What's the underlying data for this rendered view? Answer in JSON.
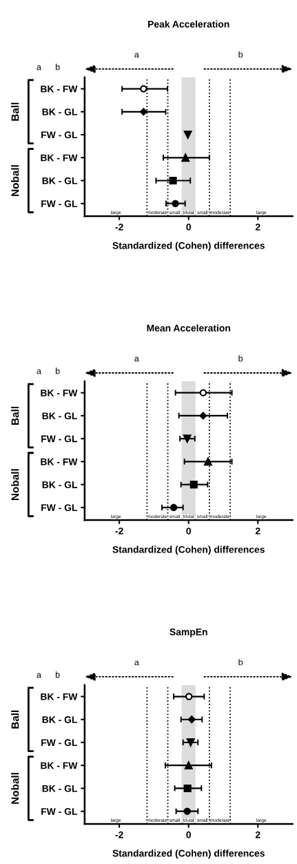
{
  "chart_data": [
    {
      "type": "scatter",
      "title": "Peak Acceleration",
      "xlabel": "Standardized (Cohen) differences",
      "orientation": "horizontal",
      "categories": [
        "BK - FW",
        "BK - GL",
        "FW - GL",
        "BK - FW",
        "BK - GL",
        "FW - GL"
      ],
      "xlim": [
        -3,
        3
      ],
      "xticks": [
        -2,
        0,
        2
      ],
      "grid": false,
      "legend": false,
      "series": [
        {
          "color": "#000000",
          "marker": "circle_open",
          "values": [
            -1.3,
            null,
            null,
            null,
            null,
            null
          ],
          "errors": [
            [
              -1.92,
              -0.61
            ],
            null,
            null,
            null,
            null,
            null
          ]
        },
        {
          "color": "#000000",
          "marker": "diamond",
          "values": [
            null,
            -1.3,
            null,
            null,
            null,
            null
          ],
          "errors": [
            null,
            [
              -1.92,
              -0.66
            ],
            null,
            null,
            null,
            null
          ]
        },
        {
          "color": "#000000",
          "marker": "triangle_down",
          "values": [
            null,
            null,
            -0.02,
            null,
            null,
            null
          ]
        },
        {
          "color": "#000000",
          "marker": "triangle",
          "values": [
            null,
            null,
            null,
            -0.09,
            null,
            null
          ],
          "errors": [
            null,
            null,
            null,
            [
              -0.73,
              0.6
            ],
            null,
            null
          ]
        },
        {
          "color": "#000000",
          "marker": "square",
          "values": [
            null,
            null,
            null,
            null,
            -0.45,
            null
          ],
          "errors": [
            null,
            null,
            null,
            null,
            [
              -0.94,
              0.05
            ],
            null
          ]
        },
        {
          "color": "#000000",
          "marker": "circle",
          "values": [
            null,
            null,
            null,
            null,
            null,
            -0.38
          ],
          "errors": [
            null,
            null,
            null,
            null,
            null,
            [
              -0.65,
              -0.1
            ]
          ]
        }
      ],
      "ref_lines": [
        {
          "axis": "x",
          "value": -1.2,
          "color": "#000000",
          "line_style": "dotted"
        },
        {
          "axis": "x",
          "value": -0.6,
          "color": "#000000",
          "line_style": "dotted"
        },
        {
          "axis": "x",
          "value": 0.6,
          "color": "#000000",
          "line_style": "dotted"
        },
        {
          "axis": "x",
          "value": 1.2,
          "color": "#000000",
          "line_style": "dotted"
        }
      ],
      "bands": [
        {
          "axis": "x",
          "from": -0.2,
          "to": 0.2,
          "label": "trivial",
          "color": "#dcdcdc"
        }
      ],
      "annotations": [
        "a",
        "b",
        "a",
        "b",
        "Ball",
        "Noball",
        "large",
        "moderate",
        "small",
        "small",
        "moderate",
        "large"
      ]
    },
    {
      "type": "scatter",
      "title": "Mean Acceleration",
      "xlabel": "Standardized (Cohen) differences",
      "orientation": "horizontal",
      "categories": [
        "BK - FW",
        "BK - GL",
        "FW - GL",
        "BK - FW",
        "BK - GL",
        "FW - GL"
      ],
      "xlim": [
        -3,
        3
      ],
      "xticks": [
        -2,
        0,
        2
      ],
      "grid": false,
      "legend": false,
      "series": [
        {
          "color": "#000000",
          "marker": "circle_open",
          "values": [
            0.42,
            null,
            null,
            null,
            null,
            null
          ],
          "errors": [
            [
              -0.38,
              1.25
            ],
            null,
            null,
            null,
            null,
            null
          ]
        },
        {
          "color": "#000000",
          "marker": "diamond",
          "values": [
            null,
            0.42,
            null,
            null,
            null,
            null
          ],
          "errors": [
            null,
            [
              -0.28,
              1.12
            ],
            null,
            null,
            null,
            null
          ]
        },
        {
          "color": "#000000",
          "marker": "triangle_down",
          "values": [
            null,
            null,
            -0.04,
            null,
            null,
            null
          ],
          "errors": [
            null,
            null,
            [
              -0.25,
              0.18
            ],
            null,
            null,
            null
          ]
        },
        {
          "color": "#000000",
          "marker": "triangle",
          "values": [
            null,
            null,
            null,
            0.56,
            null,
            null
          ],
          "errors": [
            null,
            null,
            null,
            [
              -0.12,
              1.25
            ],
            null,
            null
          ]
        },
        {
          "color": "#000000",
          "marker": "square",
          "values": [
            null,
            null,
            null,
            null,
            0.15,
            null
          ],
          "errors": [
            null,
            null,
            null,
            null,
            [
              -0.22,
              0.55
            ],
            null
          ]
        },
        {
          "color": "#000000",
          "marker": "circle",
          "values": [
            null,
            null,
            null,
            null,
            null,
            -0.43
          ],
          "errors": [
            null,
            null,
            null,
            null,
            null,
            [
              -0.77,
              -0.16
            ]
          ]
        }
      ],
      "ref_lines": [
        {
          "axis": "x",
          "value": -1.2,
          "color": "#000000",
          "line_style": "dotted"
        },
        {
          "axis": "x",
          "value": -0.6,
          "color": "#000000",
          "line_style": "dotted"
        },
        {
          "axis": "x",
          "value": 0.6,
          "color": "#000000",
          "line_style": "dotted"
        },
        {
          "axis": "x",
          "value": 1.2,
          "color": "#000000",
          "line_style": "dotted"
        }
      ],
      "bands": [
        {
          "axis": "x",
          "from": -0.2,
          "to": 0.2,
          "label": "trivial",
          "color": "#dcdcdc"
        }
      ],
      "annotations": [
        "a",
        "b",
        "a",
        "b",
        "Ball",
        "Noball",
        "large",
        "moderate",
        "small",
        "small",
        "moderate",
        "large"
      ]
    },
    {
      "type": "scatter",
      "title": "SampEn",
      "xlabel": "Standardized (Cohen) differences",
      "orientation": "horizontal",
      "categories": [
        "BK - FW",
        "BK - GL",
        "FW - GL",
        "BK - FW",
        "BK - GL",
        "FW - GL"
      ],
      "xlim": [
        -3,
        3
      ],
      "xticks": [
        -2,
        0,
        2
      ],
      "grid": false,
      "legend": false,
      "series": [
        {
          "color": "#000000",
          "marker": "circle_open",
          "values": [
            0.01,
            null,
            null,
            null,
            null,
            null
          ],
          "errors": [
            [
              -0.43,
              0.45
            ],
            null,
            null,
            null,
            null,
            null
          ]
        },
        {
          "color": "#000000",
          "marker": "diamond",
          "values": [
            null,
            0.09,
            null,
            null,
            null,
            null
          ],
          "errors": [
            null,
            [
              -0.22,
              0.39
            ],
            null,
            null,
            null,
            null
          ]
        },
        {
          "color": "#000000",
          "marker": "triangle_down",
          "values": [
            null,
            null,
            0.06,
            null,
            null,
            null
          ],
          "errors": [
            null,
            null,
            [
              -0.16,
              0.27
            ],
            null,
            null,
            null
          ]
        },
        {
          "color": "#000000",
          "marker": "triangle",
          "values": [
            null,
            null,
            null,
            0.0,
            null,
            null
          ],
          "errors": [
            null,
            null,
            null,
            [
              -0.67,
              0.66
            ],
            null,
            null
          ]
        },
        {
          "color": "#000000",
          "marker": "square",
          "values": [
            null,
            null,
            null,
            null,
            -0.03,
            null
          ],
          "errors": [
            null,
            null,
            null,
            null,
            [
              -0.4,
              0.37
            ],
            null
          ]
        },
        {
          "color": "#000000",
          "marker": "circle",
          "values": [
            null,
            null,
            null,
            null,
            null,
            -0.04
          ],
          "errors": [
            null,
            null,
            null,
            null,
            null,
            [
              -0.36,
              0.27
            ]
          ]
        }
      ],
      "ref_lines": [
        {
          "axis": "x",
          "value": -1.2,
          "color": "#000000",
          "line_style": "dotted"
        },
        {
          "axis": "x",
          "value": -0.6,
          "color": "#000000",
          "line_style": "dotted"
        },
        {
          "axis": "x",
          "value": 0.6,
          "color": "#000000",
          "line_style": "dotted"
        },
        {
          "axis": "x",
          "value": 1.2,
          "color": "#000000",
          "line_style": "dotted"
        }
      ],
      "bands": [
        {
          "axis": "x",
          "from": -0.2,
          "to": 0.2,
          "label": "trivial",
          "color": "#dcdcdc"
        }
      ],
      "annotations": [
        "a",
        "b",
        "a",
        "b",
        "Ball",
        "Noball",
        "large",
        "moderate",
        "small",
        "small",
        "moderate",
        "large"
      ]
    }
  ]
}
